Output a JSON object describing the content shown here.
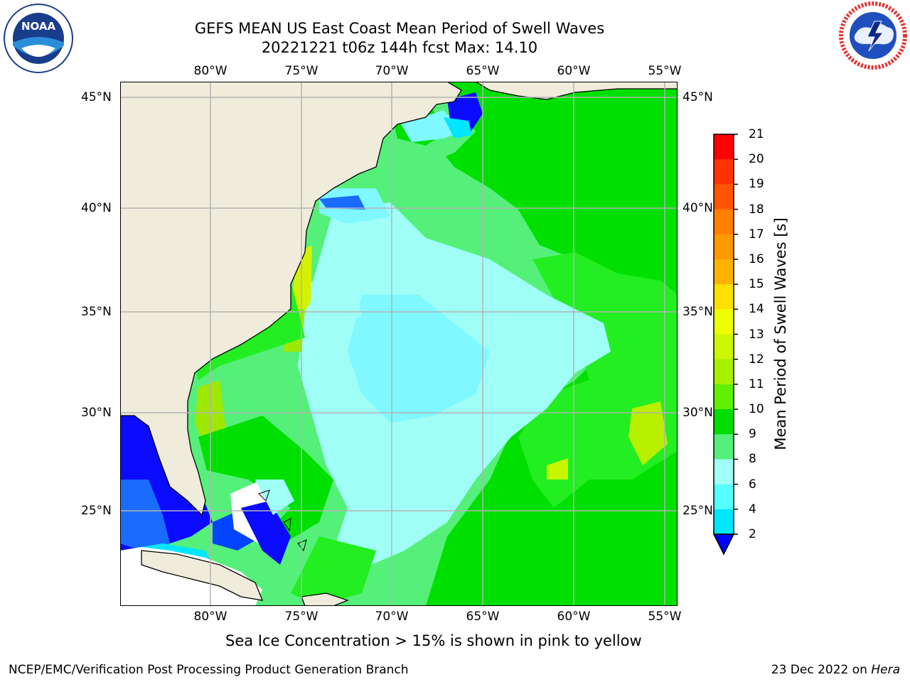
{
  "title": {
    "line1": "GEFS MEAN US East Coast Mean Period of Swell Waves",
    "line2": "20221221 t06z 144h fcst   Max: 14.10"
  },
  "logos": {
    "noaa_text": "NOAA",
    "noaa_ring_text": "NATIONAL OCEANIC AND ATMOSPHERIC ADMINISTRATION · U.S. DEPARTMENT OF COMMERCE",
    "nws_ring_text": "NATIONAL WEATHER SERVICE"
  },
  "map": {
    "lon_labels": [
      "80°W",
      "75°W",
      "70°W",
      "65°W",
      "60°W",
      "55°W"
    ],
    "lat_labels": [
      "45°N",
      "40°N",
      "35°N",
      "30°N",
      "25°N"
    ],
    "land_color": "#efecdb",
    "ice_note": "Sea Ice Concentration > 15% is shown in pink to yellow"
  },
  "colorbar": {
    "title": "Mean Period of Swell Waves [s]",
    "labels": [
      "21",
      "20",
      "19",
      "18",
      "17",
      "16",
      "15",
      "14",
      "13",
      "12",
      "11",
      "10",
      "9",
      "8",
      "6",
      "4",
      "2"
    ],
    "colors": [
      "#ff0000",
      "#ff3300",
      "#ff5500",
      "#ff7f00",
      "#ff9900",
      "#ffb300",
      "#ffe000",
      "#f0ff00",
      "#ccf700",
      "#a8f000",
      "#60f000",
      "#00dd00",
      "#55f07a",
      "#9ffff7",
      "#55ffff",
      "#00e6ff",
      "#0099ff",
      "#0044ff"
    ],
    "under_color": "#0000ff"
  },
  "footer": {
    "left": "NCEP/EMC/Verification Post Processing Product Generation Branch",
    "date": "23 Dec 2022 on ",
    "machine": "Hera"
  }
}
